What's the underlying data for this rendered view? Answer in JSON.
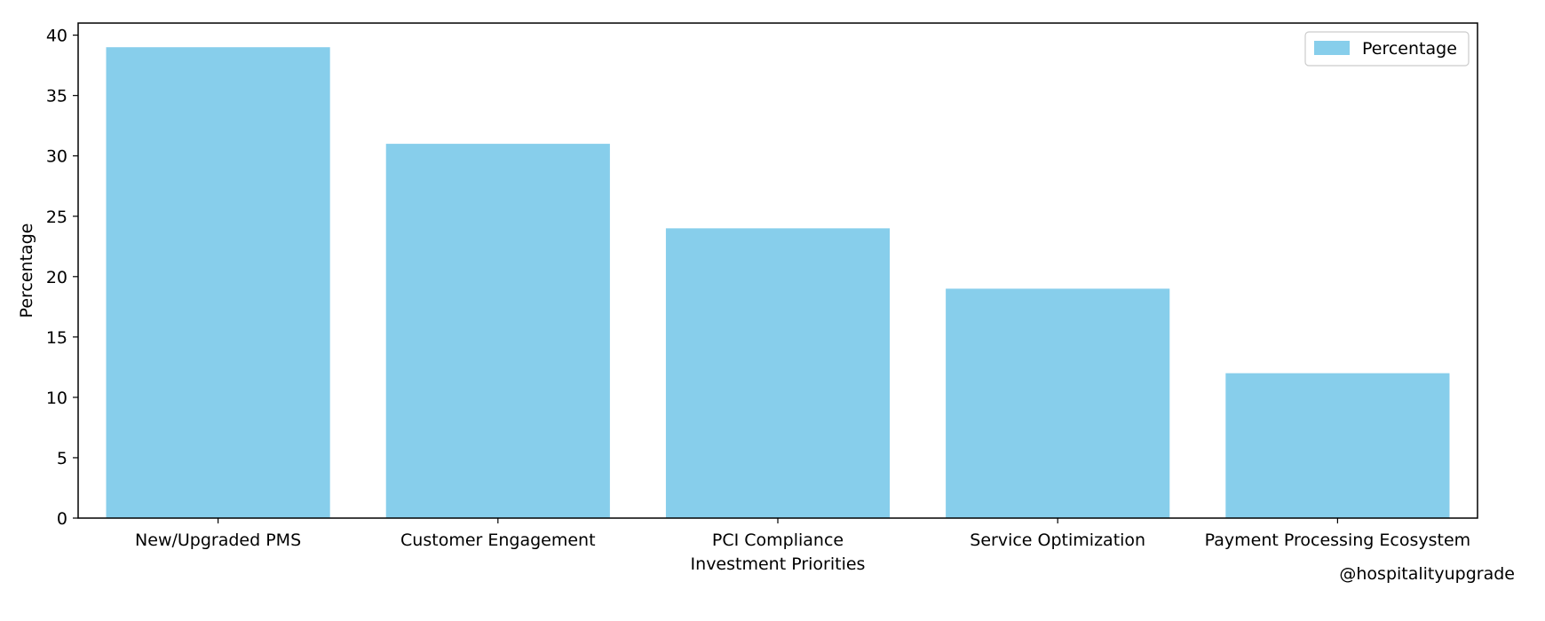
{
  "chart_data": {
    "type": "bar",
    "categories": [
      "New/Upgraded PMS",
      "Customer Engagement",
      "PCI Compliance",
      "Service Optimization",
      "Payment Processing Ecosystem"
    ],
    "series": [
      {
        "name": "Percentage",
        "values": [
          39,
          31,
          24,
          19,
          12
        ],
        "color": "#87ceeb"
      }
    ],
    "title": "",
    "xlabel": "Investment Priorities",
    "ylabel": "Percentage",
    "ylim": [
      0,
      41
    ],
    "yticks": [
      0,
      5,
      10,
      15,
      20,
      25,
      30,
      35,
      40
    ],
    "grid": false,
    "legend": {
      "position": "upper right",
      "entries": [
        "Percentage"
      ]
    }
  },
  "watermark": "@hospitalityupgrade"
}
